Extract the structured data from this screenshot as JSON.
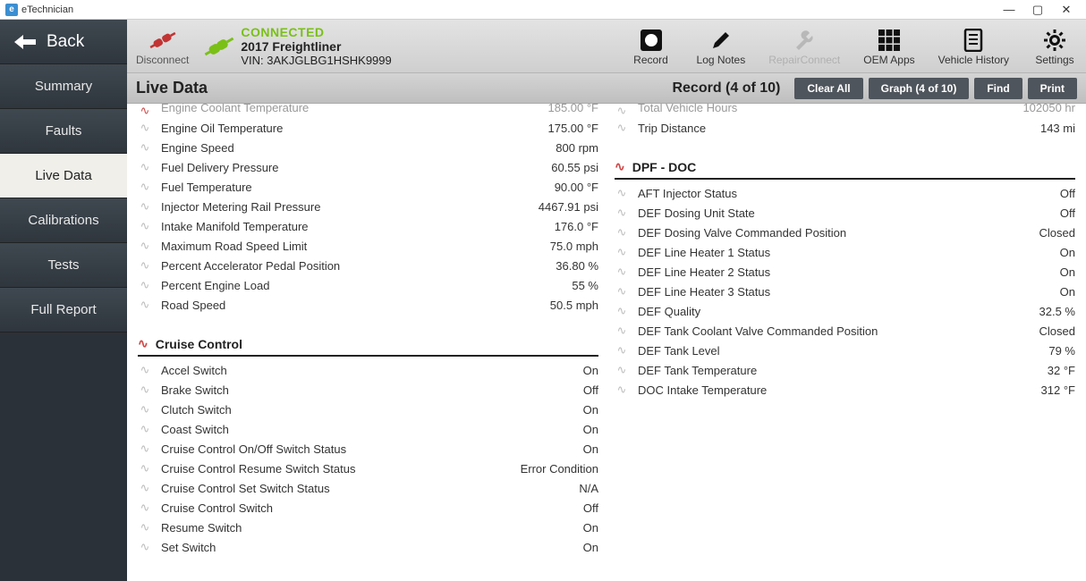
{
  "app_title": "eTechnician",
  "window_controls": {
    "minimize": "—",
    "maximize": "▢",
    "close": "✕"
  },
  "sidebar": {
    "back_label": "Back",
    "items": [
      {
        "label": "Summary"
      },
      {
        "label": "Faults"
      },
      {
        "label": "Live Data",
        "active": true
      },
      {
        "label": "Calibrations"
      },
      {
        "label": "Tests"
      },
      {
        "label": "Full Report"
      }
    ]
  },
  "header": {
    "disconnect_label": "Disconnect",
    "status": "CONNECTED",
    "vehicle": "2017 Freightliner",
    "vin": "VIN: 3AKJGLBG1HSHK9999",
    "tools": {
      "record": "Record",
      "log_notes": "Log Notes",
      "repair_connect": "RepairConnect",
      "oem_apps": "OEM Apps",
      "vehicle_history": "Vehicle History",
      "settings": "Settings"
    }
  },
  "subheader": {
    "title": "Live Data",
    "record_label": "Record (4 of 10)",
    "clear_all": "Clear All",
    "graph": "Graph (4 of 10)",
    "find": "Find",
    "print": "Print"
  },
  "left_top_cut": {
    "label": "Engine Coolant Temperature",
    "value": "185.00 °F",
    "red": true
  },
  "right_top_cut": {
    "label": "Total Vehicle Hours",
    "value": "102050 hr"
  },
  "left_upper": [
    {
      "label": "Engine Oil Temperature",
      "value": "175.00 °F"
    },
    {
      "label": "Engine Speed",
      "value": "800 rpm"
    },
    {
      "label": "Fuel Delivery Pressure",
      "value": "60.55 psi"
    },
    {
      "label": "Fuel Temperature",
      "value": "90.00 °F"
    },
    {
      "label": "Injector Metering Rail Pressure",
      "value": "4467.91 psi"
    },
    {
      "label": "Intake Manifold Temperature",
      "value": "176.0 °F"
    },
    {
      "label": "Maximum Road Speed Limit",
      "value": "75.0 mph"
    },
    {
      "label": "Percent Accelerator Pedal Position",
      "value": "36.80 %"
    },
    {
      "label": "Percent Engine Load",
      "value": "55 %"
    },
    {
      "label": "Road Speed",
      "value": "50.5 mph"
    }
  ],
  "right_upper": [
    {
      "label": "Trip Distance",
      "value": "143 mi"
    }
  ],
  "left_group_title": "Cruise Control",
  "right_group_title": "DPF - DOC",
  "left_lower": [
    {
      "label": "Accel Switch",
      "value": "On"
    },
    {
      "label": "Brake Switch",
      "value": "Off"
    },
    {
      "label": "Clutch Switch",
      "value": "On"
    },
    {
      "label": "Coast Switch",
      "value": "On"
    },
    {
      "label": "Cruise Control On/Off Switch Status",
      "value": "On"
    },
    {
      "label": "Cruise Control Resume Switch Status",
      "value": "Error Condition"
    },
    {
      "label": "Cruise Control Set Switch Status",
      "value": "N/A"
    },
    {
      "label": "Cruise Control Switch",
      "value": "Off"
    },
    {
      "label": "Resume Switch",
      "value": "On"
    },
    {
      "label": "Set Switch",
      "value": "On"
    }
  ],
  "right_lower": [
    {
      "label": "AFT Injector Status",
      "value": "Off"
    },
    {
      "label": "DEF Dosing Unit State",
      "value": "Off"
    },
    {
      "label": "DEF Dosing Valve Commanded Position",
      "value": "Closed"
    },
    {
      "label": "DEF Line Heater 1 Status",
      "value": "On"
    },
    {
      "label": "DEF Line Heater 2 Status",
      "value": "On"
    },
    {
      "label": "DEF Line Heater 3 Status",
      "value": "On"
    },
    {
      "label": "DEF Quality",
      "value": "32.5 %"
    },
    {
      "label": "DEF Tank Coolant Valve Commanded Position",
      "value": "Closed"
    },
    {
      "label": "DEF Tank Level",
      "value": "79 %"
    },
    {
      "label": "DEF Tank Temperature",
      "value": "32 °F"
    },
    {
      "label": "DOC Intake Temperature",
      "value": "312 °F"
    }
  ],
  "colors": {
    "status_green": "#7ac016",
    "disconnect_red": "#c23333",
    "pulse_gray": "#bdbdbd",
    "pulse_red": "#d04646"
  }
}
